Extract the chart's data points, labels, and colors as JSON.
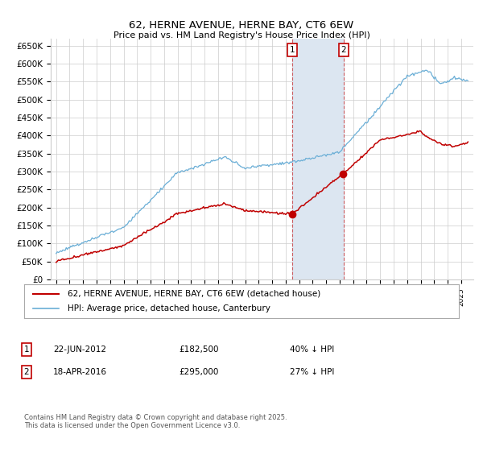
{
  "title": "62, HERNE AVENUE, HERNE BAY, CT6 6EW",
  "subtitle": "Price paid vs. HM Land Registry's House Price Index (HPI)",
  "ylim": [
    0,
    670000
  ],
  "yticks": [
    0,
    50000,
    100000,
    150000,
    200000,
    250000,
    300000,
    350000,
    400000,
    450000,
    500000,
    550000,
    600000,
    650000
  ],
  "ytick_labels": [
    "£0",
    "£50K",
    "£100K",
    "£150K",
    "£200K",
    "£250K",
    "£300K",
    "£350K",
    "£400K",
    "£450K",
    "£500K",
    "£550K",
    "£600K",
    "£650K"
  ],
  "hpi_color": "#6aaed6",
  "property_color": "#c00000",
  "sale1_date": 2012.47,
  "sale1_price": 182500,
  "sale1_label": "1",
  "sale2_date": 2016.29,
  "sale2_price": 295000,
  "sale2_label": "2",
  "shaded_color": "#dce6f1",
  "legend_property": "62, HERNE AVENUE, HERNE BAY, CT6 6EW (detached house)",
  "legend_hpi": "HPI: Average price, detached house, Canterbury",
  "annotation1_date": "22-JUN-2012",
  "annotation1_price": "£182,500",
  "annotation1_hpi": "40% ↓ HPI",
  "annotation2_date": "18-APR-2016",
  "annotation2_price": "£295,000",
  "annotation2_hpi": "27% ↓ HPI",
  "footnote": "Contains HM Land Registry data © Crown copyright and database right 2025.\nThis data is licensed under the Open Government Licence v3.0.",
  "background_color": "#ffffff",
  "grid_color": "#cccccc"
}
